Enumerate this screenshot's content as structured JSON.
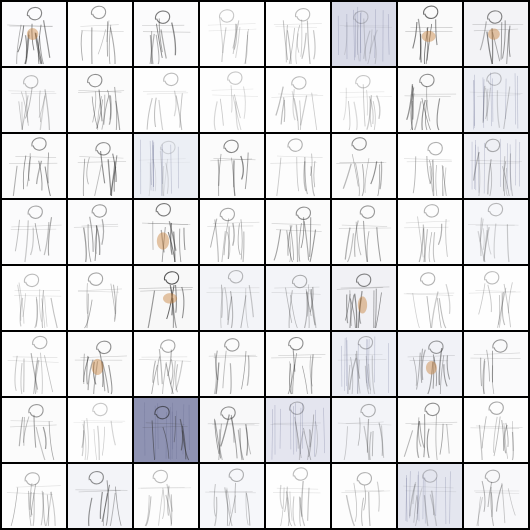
{
  "grid": {
    "rows": 8,
    "cols": 8,
    "subject": "generated-figure-sketch",
    "tiles": [
      {
        "tone": "#fbfbfd",
        "ink": 0.55,
        "color": "#c8803a",
        "seed": 1
      },
      {
        "tone": "#fdfdfd",
        "ink": 0.45,
        "color": null,
        "seed": 2
      },
      {
        "tone": "#fbfbfc",
        "ink": 0.6,
        "color": null,
        "seed": 3
      },
      {
        "tone": "#fefefe",
        "ink": 0.25,
        "color": null,
        "seed": 4
      },
      {
        "tone": "#fefefe",
        "ink": 0.3,
        "color": null,
        "seed": 5
      },
      {
        "tone": "#d9dbe8",
        "ink": 0.2,
        "color": null,
        "seed": 6
      },
      {
        "tone": "#fafafa",
        "ink": 0.65,
        "color": "#c8803a",
        "seed": 7
      },
      {
        "tone": "#f3f3f6",
        "ink": 0.55,
        "color": "#c8803a",
        "seed": 8
      },
      {
        "tone": "#fafafb",
        "ink": 0.3,
        "color": null,
        "seed": 9
      },
      {
        "tone": "#fbfbfb",
        "ink": 0.5,
        "color": null,
        "seed": 10
      },
      {
        "tone": "#fefefe",
        "ink": 0.3,
        "color": null,
        "seed": 11
      },
      {
        "tone": "#fefefe",
        "ink": 0.25,
        "color": null,
        "seed": 12
      },
      {
        "tone": "#fefefe",
        "ink": 0.3,
        "color": null,
        "seed": 13
      },
      {
        "tone": "#fefefe",
        "ink": 0.25,
        "color": null,
        "seed": 14
      },
      {
        "tone": "#fafafa",
        "ink": 0.5,
        "color": null,
        "seed": 15
      },
      {
        "tone": "#eceef4",
        "ink": 0.25,
        "color": null,
        "seed": 16
      },
      {
        "tone": "#fbfbfb",
        "ink": 0.5,
        "color": null,
        "seed": 17
      },
      {
        "tone": "#fbfbfb",
        "ink": 0.5,
        "color": null,
        "seed": 18
      },
      {
        "tone": "#eceff5",
        "ink": 0.15,
        "color": null,
        "seed": 19
      },
      {
        "tone": "#fbfbfb",
        "ink": 0.55,
        "color": null,
        "seed": 20
      },
      {
        "tone": "#fdfdfd",
        "ink": 0.35,
        "color": null,
        "seed": 21
      },
      {
        "tone": "#fbfbfb",
        "ink": 0.5,
        "color": null,
        "seed": 22
      },
      {
        "tone": "#fefefe",
        "ink": 0.35,
        "color": null,
        "seed": 23
      },
      {
        "tone": "#eff0f5",
        "ink": 0.35,
        "color": null,
        "seed": 24
      },
      {
        "tone": "#fbfbfc",
        "ink": 0.4,
        "color": null,
        "seed": 25
      },
      {
        "tone": "#fbfbfc",
        "ink": 0.45,
        "color": null,
        "seed": 26
      },
      {
        "tone": "#fafafa",
        "ink": 0.6,
        "color": "#c8803a",
        "seed": 27
      },
      {
        "tone": "#fdfdfd",
        "ink": 0.4,
        "color": null,
        "seed": 28
      },
      {
        "tone": "#fbfbfb",
        "ink": 0.5,
        "color": null,
        "seed": 29
      },
      {
        "tone": "#fbfbfb",
        "ink": 0.45,
        "color": null,
        "seed": 30
      },
      {
        "tone": "#fdfdfd",
        "ink": 0.35,
        "color": null,
        "seed": 31
      },
      {
        "tone": "#f6f7fa",
        "ink": 0.3,
        "color": null,
        "seed": 32
      },
      {
        "tone": "#fefefe",
        "ink": 0.3,
        "color": null,
        "seed": 33
      },
      {
        "tone": "#fdfdfd",
        "ink": 0.4,
        "color": null,
        "seed": 34
      },
      {
        "tone": "#f8f8f8",
        "ink": 0.75,
        "color": "#c8803a",
        "seed": 35
      },
      {
        "tone": "#f3f4f8",
        "ink": 0.3,
        "color": null,
        "seed": 36
      },
      {
        "tone": "#f3f4f8",
        "ink": 0.35,
        "color": null,
        "seed": 37
      },
      {
        "tone": "#f1f1f5",
        "ink": 0.55,
        "color": "#c8803a",
        "seed": 38
      },
      {
        "tone": "#fefefe",
        "ink": 0.35,
        "color": null,
        "seed": 39
      },
      {
        "tone": "#fefefe",
        "ink": 0.3,
        "color": null,
        "seed": 40
      },
      {
        "tone": "#fdfdfd",
        "ink": 0.35,
        "color": null,
        "seed": 41
      },
      {
        "tone": "#fbfbfb",
        "ink": 0.5,
        "color": "#c8803a",
        "seed": 42
      },
      {
        "tone": "#fdfdfd",
        "ink": 0.4,
        "color": null,
        "seed": 43
      },
      {
        "tone": "#fbfbfb",
        "ink": 0.45,
        "color": null,
        "seed": 44
      },
      {
        "tone": "#fbfbfb",
        "ink": 0.5,
        "color": null,
        "seed": 45
      },
      {
        "tone": "#eceef5",
        "ink": 0.3,
        "color": null,
        "seed": 46
      },
      {
        "tone": "#f1f2f7",
        "ink": 0.45,
        "color": "#c8803a",
        "seed": 47
      },
      {
        "tone": "#fafafb",
        "ink": 0.45,
        "color": null,
        "seed": 48
      },
      {
        "tone": "#fbfbfb",
        "ink": 0.45,
        "color": null,
        "seed": 49
      },
      {
        "tone": "#fefefe",
        "ink": 0.25,
        "color": null,
        "seed": 50
      },
      {
        "tone": "#8f93b3",
        "ink": 0.6,
        "color": null,
        "seed": 51
      },
      {
        "tone": "#f8f8f9",
        "ink": 0.5,
        "color": null,
        "seed": 52
      },
      {
        "tone": "#e4e5ef",
        "ink": 0.3,
        "color": null,
        "seed": 53
      },
      {
        "tone": "#f3f4f8",
        "ink": 0.35,
        "color": null,
        "seed": 54
      },
      {
        "tone": "#fbfbfb",
        "ink": 0.5,
        "color": null,
        "seed": 55
      },
      {
        "tone": "#fdfdfd",
        "ink": 0.4,
        "color": null,
        "seed": 56
      },
      {
        "tone": "#fdfdfd",
        "ink": 0.35,
        "color": null,
        "seed": 57
      },
      {
        "tone": "#f3f4f8",
        "ink": 0.5,
        "color": null,
        "seed": 58
      },
      {
        "tone": "#fdfdfd",
        "ink": 0.3,
        "color": null,
        "seed": 59
      },
      {
        "tone": "#f6f7fa",
        "ink": 0.35,
        "color": null,
        "seed": 60
      },
      {
        "tone": "#fefefe",
        "ink": 0.3,
        "color": null,
        "seed": 61
      },
      {
        "tone": "#fdfdfd",
        "ink": 0.35,
        "color": null,
        "seed": 62
      },
      {
        "tone": "#e4e6ef",
        "ink": 0.25,
        "color": null,
        "seed": 63
      },
      {
        "tone": "#f8f8fa",
        "ink": 0.35,
        "color": null,
        "seed": 64
      }
    ]
  }
}
